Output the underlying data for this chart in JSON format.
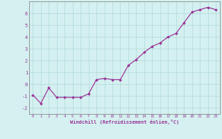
{
  "x": [
    0,
    1,
    2,
    3,
    4,
    5,
    6,
    7,
    8,
    9,
    10,
    11,
    12,
    13,
    14,
    15,
    16,
    17,
    18,
    19,
    20,
    21,
    22,
    23
  ],
  "y": [
    -0.9,
    -1.6,
    -0.3,
    -1.1,
    -1.1,
    -1.1,
    -1.1,
    -0.8,
    0.4,
    0.5,
    0.4,
    0.4,
    1.6,
    2.1,
    2.7,
    3.2,
    3.5,
    4.0,
    4.3,
    5.2,
    6.1,
    6.3,
    6.5,
    6.3
  ],
  "xlim": [
    -0.5,
    23.5
  ],
  "ylim": [
    -2.5,
    7.0
  ],
  "yticks": [
    -2,
    -1,
    0,
    1,
    2,
    3,
    4,
    5,
    6
  ],
  "xticks": [
    0,
    1,
    2,
    3,
    4,
    5,
    6,
    7,
    8,
    9,
    10,
    11,
    12,
    13,
    14,
    15,
    16,
    17,
    18,
    19,
    20,
    21,
    22,
    23
  ],
  "xlabel": "Windchill (Refroidissement éolien,°C)",
  "line_color": "#993399",
  "marker": "D",
  "marker_size": 1.8,
  "bg_color": "#d4f0f0",
  "grid_color": "#b0d8d8",
  "label_color": "#993399",
  "spine_color": "#888888"
}
